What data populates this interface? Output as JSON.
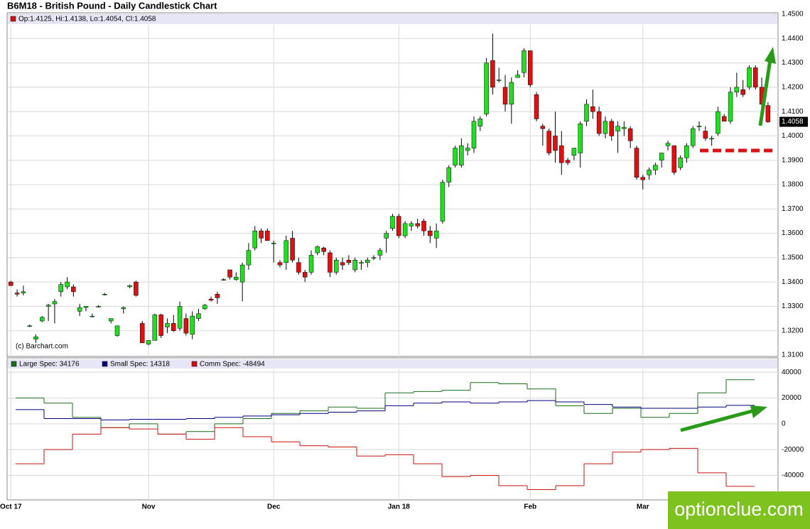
{
  "chart_data": {
    "type": "candlestick",
    "title": "B6M18 - British Pound - Daily Candlestick Chart",
    "info": "Op:1.4125, Hi:1.4138, Lo:1.4054, Cl:1.4058",
    "source": "(c) Barchart.com",
    "watermark": "optionclue.com",
    "up_color": "#22dd22",
    "down_color": "#dd1111",
    "grid": true,
    "ylim": [
      1.31,
      1.45
    ],
    "yticks": [
      {
        "value": 1.31,
        "label": "1.3100"
      },
      {
        "value": 1.32,
        "label": "1.3200"
      },
      {
        "value": 1.33,
        "label": "1.3300"
      },
      {
        "value": 1.34,
        "label": "1.3400"
      },
      {
        "value": 1.35,
        "label": "1.3500"
      },
      {
        "value": 1.36,
        "label": "1.3600"
      },
      {
        "value": 1.37,
        "label": "1.3700"
      },
      {
        "value": 1.38,
        "label": "1.3800"
      },
      {
        "value": 1.39,
        "label": "1.3900"
      },
      {
        "value": 1.4,
        "label": "1.4000"
      },
      {
        "value": 1.41,
        "label": "1.4100"
      },
      {
        "value": 1.42,
        "label": "1.4200"
      },
      {
        "value": 1.43,
        "label": "1.4300"
      },
      {
        "value": 1.44,
        "label": "1.4400"
      },
      {
        "value": 1.45,
        "label": "1.4500"
      }
    ],
    "xlim": [
      -0.6,
      122.6
    ],
    "xticks": [
      {
        "value": 0,
        "label": "Oct 17"
      },
      {
        "value": 22,
        "label": "Nov"
      },
      {
        "value": 42,
        "label": "Dec"
      },
      {
        "value": 62,
        "label": "Jan 18"
      },
      {
        "value": 83,
        "label": "Feb"
      },
      {
        "value": 101,
        "label": "Mar"
      }
    ],
    "ohlc": [
      [
        1.34,
        1.3405,
        1.3385,
        1.3385
      ],
      [
        1.3355,
        1.337,
        1.334,
        1.335
      ],
      [
        1.3355,
        1.3385,
        1.3345,
        1.336
      ],
      [
        1.322,
        1.3225,
        1.3215,
        1.322
      ],
      [
        1.3165,
        1.3185,
        1.315,
        1.3175
      ],
      [
        1.324,
        1.326,
        1.3235,
        1.3255
      ],
      [
        1.33,
        1.331,
        1.324,
        1.3305
      ],
      [
        1.331,
        1.333,
        1.323,
        1.332
      ],
      [
        1.336,
        1.34,
        1.334,
        1.339
      ],
      [
        1.338,
        1.342,
        1.337,
        1.34
      ],
      [
        1.338,
        1.339,
        1.334,
        1.336
      ],
      [
        1.328,
        1.331,
        1.326,
        1.3295
      ],
      [
        1.3295,
        1.33,
        1.328,
        1.33
      ],
      [
        1.326,
        1.327,
        1.3255,
        1.326
      ],
      [
        1.33,
        1.3305,
        1.3295,
        1.33
      ],
      [
        1.335,
        1.3355,
        1.3345,
        1.335
      ],
      [
        1.324,
        1.325,
        1.323,
        1.325
      ],
      [
        1.318,
        1.322,
        1.3175,
        1.322
      ],
      [
        1.329,
        1.33,
        1.327,
        1.3295
      ],
      [
        1.338,
        1.339,
        1.3375,
        1.3385
      ],
      [
        1.34,
        1.3405,
        1.334,
        1.3345
      ],
      [
        1.323,
        1.324,
        1.315,
        1.315
      ],
      [
        1.3145,
        1.316,
        1.314,
        1.316
      ],
      [
        1.316,
        1.327,
        1.316,
        1.3265
      ],
      [
        1.3265,
        1.327,
        1.317,
        1.318
      ],
      [
        1.3215,
        1.325,
        1.319,
        1.323
      ],
      [
        1.323,
        1.3265,
        1.3195,
        1.32
      ],
      [
        1.321,
        1.332,
        1.32,
        1.33
      ],
      [
        1.325,
        1.327,
        1.318,
        1.319
      ],
      [
        1.3185,
        1.328,
        1.3165,
        1.326
      ],
      [
        1.325,
        1.329,
        1.324,
        1.327
      ],
      [
        1.329,
        1.331,
        1.3285,
        1.3305
      ],
      [
        1.333,
        1.334,
        1.332,
        1.3325
      ],
      [
        1.335,
        1.336,
        1.331,
        1.3335
      ],
      [
        1.341,
        1.3415,
        1.3405,
        1.341
      ],
      [
        1.345,
        1.345,
        1.341,
        1.342
      ],
      [
        1.341,
        1.344,
        1.3405,
        1.342
      ],
      [
        1.34,
        1.348,
        1.332,
        1.347
      ],
      [
        1.347,
        1.356,
        1.345,
        1.353
      ],
      [
        1.354,
        1.363,
        1.353,
        1.361
      ],
      [
        1.361,
        1.362,
        1.356,
        1.358
      ],
      [
        1.361,
        1.362,
        1.357,
        1.357
      ],
      [
        1.356,
        1.357,
        1.348,
        1.356
      ],
      [
        1.348,
        1.349,
        1.346,
        1.347
      ],
      [
        1.348,
        1.359,
        1.345,
        1.357
      ],
      [
        1.358,
        1.361,
        1.348,
        1.349
      ],
      [
        1.348,
        1.35,
        1.343,
        1.344
      ],
      [
        1.344,
        1.345,
        1.34,
        1.342
      ],
      [
        1.344,
        1.353,
        1.343,
        1.351
      ],
      [
        1.352,
        1.355,
        1.351,
        1.3545
      ],
      [
        1.354,
        1.3545,
        1.351,
        1.3525
      ],
      [
        1.352,
        1.353,
        1.342,
        1.344
      ],
      [
        1.344,
        1.35,
        1.343,
        1.349
      ],
      [
        1.348,
        1.35,
        1.345,
        1.347
      ],
      [
        1.349,
        1.351,
        1.347,
        1.348
      ],
      [
        1.345,
        1.35,
        1.344,
        1.349
      ],
      [
        1.348,
        1.349,
        1.345,
        1.348
      ],
      [
        1.348,
        1.35,
        1.346,
        1.349
      ],
      [
        1.35,
        1.351,
        1.349,
        1.35
      ],
      [
        1.351,
        1.354,
        1.349,
        1.353
      ],
      [
        1.358,
        1.361,
        1.352,
        1.36
      ],
      [
        1.362,
        1.368,
        1.361,
        1.367
      ],
      [
        1.367,
        1.368,
        1.358,
        1.359
      ],
      [
        1.359,
        1.365,
        1.358,
        1.364
      ],
      [
        1.363,
        1.365,
        1.361,
        1.364
      ],
      [
        1.364,
        1.366,
        1.362,
        1.363
      ],
      [
        1.365,
        1.366,
        1.359,
        1.361
      ],
      [
        1.361,
        1.363,
        1.356,
        1.359
      ],
      [
        1.358,
        1.364,
        1.354,
        1.361
      ],
      [
        1.365,
        1.382,
        1.364,
        1.381
      ],
      [
        1.381,
        1.388,
        1.379,
        1.387
      ],
      [
        1.388,
        1.396,
        1.387,
        1.395
      ],
      [
        1.388,
        1.399,
        1.387,
        1.396
      ],
      [
        1.394,
        1.397,
        1.392,
        1.395
      ],
      [
        1.395,
        1.408,
        1.393,
        1.406
      ],
      [
        1.404,
        1.408,
        1.402,
        1.407
      ],
      [
        1.409,
        1.432,
        1.408,
        1.43
      ],
      [
        1.431,
        1.442,
        1.417,
        1.42
      ],
      [
        1.423,
        1.428,
        1.422,
        1.423
      ],
      [
        1.42,
        1.425,
        1.41,
        1.413
      ],
      [
        1.413,
        1.424,
        1.405,
        1.422
      ],
      [
        1.424,
        1.427,
        1.424,
        1.425
      ],
      [
        1.426,
        1.436,
        1.424,
        1.435
      ],
      [
        1.435,
        1.435,
        1.42,
        1.421
      ],
      [
        1.417,
        1.418,
        1.406,
        1.407
      ],
      [
        1.404,
        1.405,
        1.396,
        1.403
      ],
      [
        1.402,
        1.403,
        1.392,
        1.393
      ],
      [
        1.4,
        1.41,
        1.389,
        1.394
      ],
      [
        1.396,
        1.402,
        1.384,
        1.389
      ],
      [
        1.39,
        1.391,
        1.388,
        1.389
      ],
      [
        1.392,
        1.395,
        1.39,
        1.395
      ],
      [
        1.393,
        1.406,
        1.387,
        1.405
      ],
      [
        1.406,
        1.415,
        1.404,
        1.413
      ],
      [
        1.412,
        1.419,
        1.407,
        1.41
      ],
      [
        1.41,
        1.412,
        1.4,
        1.401
      ],
      [
        1.401,
        1.408,
        1.399,
        1.406
      ],
      [
        1.406,
        1.407,
        1.398,
        1.4
      ],
      [
        1.402,
        1.406,
        1.393,
        1.404
      ],
      [
        1.403,
        1.406,
        1.4,
        1.4035
      ],
      [
        1.403,
        1.404,
        1.395,
        1.398
      ],
      [
        1.395,
        1.396,
        1.382,
        1.383
      ],
      [
        1.383,
        1.384,
        1.378,
        1.382
      ],
      [
        1.384,
        1.387,
        1.382,
        1.386
      ],
      [
        1.386,
        1.389,
        1.384,
        1.388
      ],
      [
        1.39,
        1.393,
        1.387,
        1.393
      ],
      [
        1.396,
        1.398,
        1.394,
        1.397
      ],
      [
        1.396,
        1.396,
        1.384,
        1.385
      ],
      [
        1.387,
        1.392,
        1.386,
        1.391
      ],
      [
        1.391,
        1.397,
        1.389,
        1.396
      ],
      [
        1.396,
        1.404,
        1.395,
        1.403
      ],
      [
        1.404,
        1.406,
        1.402,
        1.404
      ],
      [
        1.402,
        1.404,
        1.398,
        1.399
      ],
      [
        1.399,
        1.4,
        1.396,
        1.399
      ],
      [
        1.401,
        1.412,
        1.4,
        1.41
      ],
      [
        1.408,
        1.409,
        1.406,
        1.406
      ],
      [
        1.406,
        1.42,
        1.405,
        1.418
      ],
      [
        1.418,
        1.426,
        1.416,
        1.42
      ],
      [
        1.419,
        1.423,
        1.416,
        1.417
      ],
      [
        1.42,
        1.429,
        1.419,
        1.428
      ],
      [
        1.428,
        1.429,
        1.419,
        1.42
      ],
      [
        1.42,
        1.424,
        1.412,
        1.413
      ],
      [
        1.4125,
        1.4138,
        1.4054,
        1.4058
      ]
    ],
    "cot": {
      "type": "step",
      "ylim": [
        -59000,
        50000
      ],
      "yticks": [
        40000,
        20000,
        0,
        -20000,
        -40000
      ],
      "series": [
        {
          "name": "Large Spec",
          "label": "Large Spec: 34176",
          "color": "#1a6e1a",
          "values": [
            20000,
            16000,
            5000,
            -3000,
            0,
            -8000,
            -6000,
            0,
            4000,
            8000,
            10000,
            13000,
            12000,
            24000,
            25000,
            26000,
            32000,
            31000,
            27000,
            14000,
            8000,
            12000,
            5000,
            8000,
            24000,
            34176
          ]
        },
        {
          "name": "Small Spec",
          "label": "Small Spec: 14318",
          "color": "#000080",
          "values": [
            11000,
            4000,
            4000,
            3000,
            3500,
            3500,
            4000,
            5000,
            6000,
            7000,
            8000,
            9000,
            10000,
            14000,
            16000,
            17000,
            16000,
            17000,
            18000,
            17000,
            15000,
            13000,
            12000,
            12000,
            13000,
            14318
          ]
        },
        {
          "name": "Comm Spec",
          "label": "Comm Spec: -48494",
          "color": "#cc1111",
          "values": [
            -31000,
            -20000,
            -8000,
            -3000,
            -4000,
            -8000,
            -12000,
            -3000,
            -10000,
            -14000,
            -17000,
            -18000,
            -25000,
            -24000,
            -31000,
            -41000,
            -40000,
            -48000,
            -51000,
            -48000,
            -31000,
            -22000,
            -20000,
            -19000,
            -38000,
            -48494
          ]
        }
      ]
    }
  }
}
